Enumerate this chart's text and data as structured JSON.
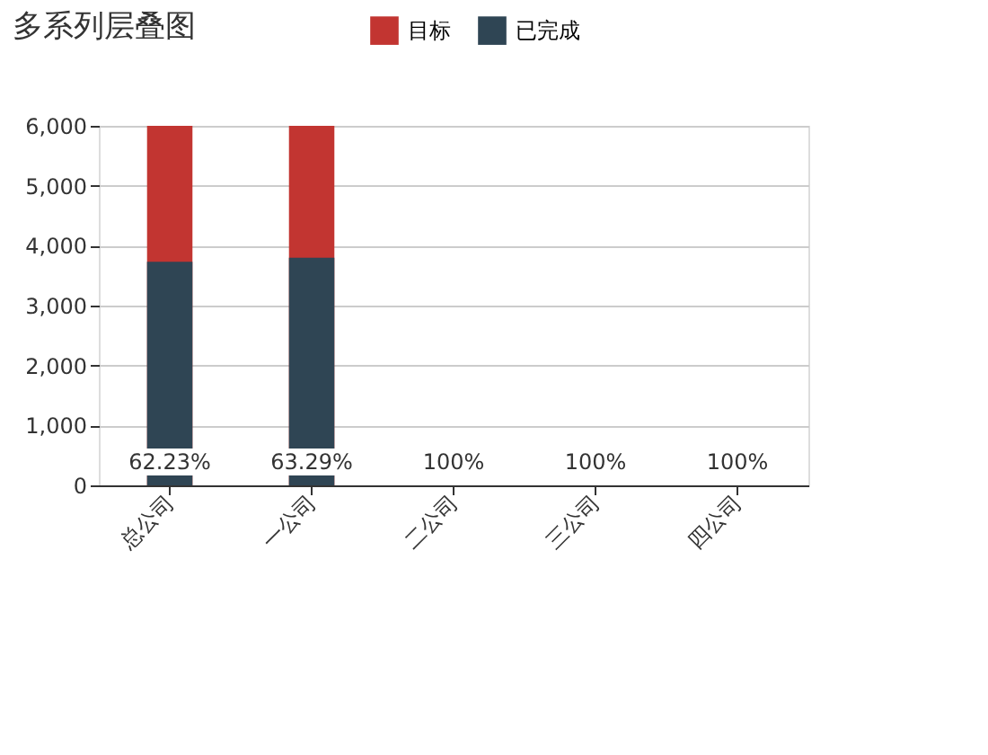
{
  "chart_data": {
    "type": "bar",
    "title": "多系列层叠图",
    "categories": [
      "总公司",
      "一公司",
      "二公司",
      "三公司",
      "四公司"
    ],
    "series": [
      {
        "name": "目标",
        "color": "#c23531",
        "values": [
          6000,
          6000,
          0,
          0,
          0
        ]
      },
      {
        "name": "已完成",
        "color": "#2f4554",
        "values": [
          3730,
          3800,
          0,
          0,
          0
        ]
      }
    ],
    "annotations": [
      {
        "text": "62.23%",
        "x": "总公司",
        "y": 0
      },
      {
        "text": "63.29%",
        "x": "一公司",
        "y": 0
      },
      {
        "text": "100%",
        "x": "二公司",
        "y": 0
      },
      {
        "text": "100%",
        "x": "三公司",
        "y": 0
      },
      {
        "text": "100%",
        "x": "四公司",
        "y": 0
      }
    ],
    "ylim": [
      0,
      6000
    ],
    "yticks": [
      {
        "value": 0,
        "label": "0"
      },
      {
        "value": 1000,
        "label": "1,000"
      },
      {
        "value": 2000,
        "label": "2,000"
      },
      {
        "value": 3000,
        "label": "3,000"
      },
      {
        "value": 4000,
        "label": "4,000"
      },
      {
        "value": 5000,
        "label": "5,000"
      },
      {
        "value": 6000,
        "label": "6,000"
      }
    ],
    "grid": "y",
    "legend": "top"
  }
}
